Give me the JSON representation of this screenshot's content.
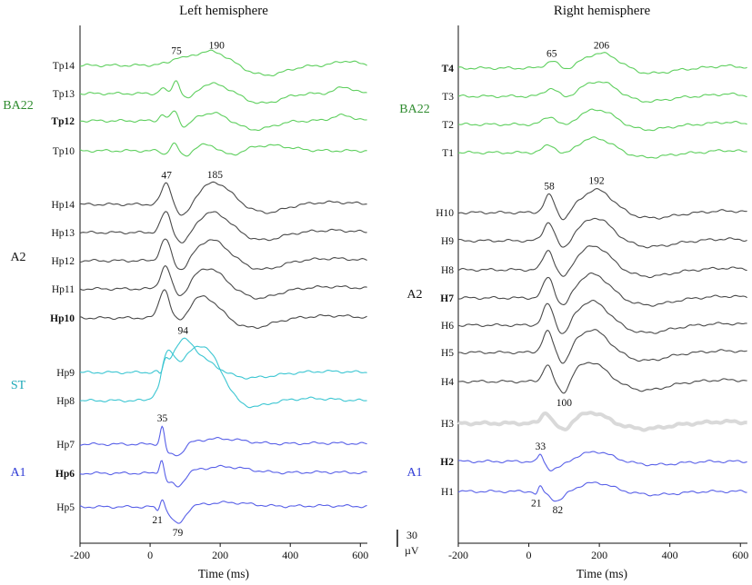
{
  "colors": {
    "green": "#5ecf5e",
    "dark": "#4a4a4a",
    "cyan": "#3cc6d2",
    "blue": "#5860e8",
    "gray_faded": "#d9d9d9",
    "group_green": "#2e8b2e",
    "group_cyan": "#1ea9b8",
    "group_blue": "#2f3bd6",
    "group_dark": "#111111"
  },
  "scale_bar": {
    "value": "30",
    "unit": "µV"
  },
  "chart_data": [
    {
      "type": "line",
      "title": "Left hemisphere",
      "xlabel": "Time (ms)",
      "xlim": [
        -200,
        620
      ],
      "xticks": [
        "-200",
        "0",
        "200",
        "400",
        "600"
      ],
      "groups": [
        {
          "name": "BA22",
          "color_key": "group_green",
          "channels": [
            "Tp14",
            "Tp13",
            "Tp12",
            "Tp10"
          ]
        },
        {
          "name": "A2",
          "color_key": "group_dark",
          "channels": [
            "Hp14",
            "Hp13",
            "Hp12",
            "Hp11",
            "Hp10"
          ]
        },
        {
          "name": "ST",
          "color_key": "group_cyan",
          "channels": [
            "Hp9",
            "Hp8"
          ]
        },
        {
          "name": "A1",
          "color_key": "group_blue",
          "channels": [
            "Hp7",
            "Hp6",
            "Hp5"
          ]
        }
      ],
      "series": [
        {
          "name": "Tp14",
          "bold": false,
          "color_key": "green",
          "comps": [
            [
              75,
              -6,
              12
            ],
            [
              150,
              -18,
              60
            ],
            [
              190,
              -10,
              40
            ],
            [
              330,
              18,
              55
            ],
            [
              560,
              -8,
              30
            ]
          ]
        },
        {
          "name": "Tp13",
          "bold": false,
          "color_key": "green",
          "comps": [
            [
              35,
              -10,
              8
            ],
            [
              75,
              -25,
              10
            ],
            [
              110,
              14,
              18
            ],
            [
              180,
              -18,
              45
            ],
            [
              320,
              18,
              50
            ],
            [
              555,
              -12,
              25
            ]
          ]
        },
        {
          "name": "Tp12",
          "bold": true,
          "color_key": "green",
          "comps": [
            [
              35,
              -12,
              8
            ],
            [
              70,
              -20,
              10
            ],
            [
              100,
              12,
              16
            ],
            [
              180,
              -15,
              40
            ],
            [
              300,
              16,
              50
            ],
            [
              550,
              -10,
              30
            ]
          ]
        },
        {
          "name": "Tp10",
          "bold": false,
          "color_key": "green",
          "comps": [
            [
              40,
              6,
              8
            ],
            [
              70,
              -14,
              10
            ],
            [
              100,
              10,
              16
            ],
            [
              165,
              -12,
              30
            ],
            [
              230,
              10,
              30
            ],
            [
              340,
              -10,
              60
            ]
          ]
        },
        {
          "name": "Hp14",
          "bold": false,
          "color_key": "dark",
          "comps": [
            [
              47,
              -40,
              14
            ],
            [
              95,
              26,
              20
            ],
            [
              185,
              -40,
              45
            ],
            [
              330,
              15,
              50
            ],
            [
              520,
              -4,
              60
            ]
          ]
        },
        {
          "name": "Hp13",
          "bold": false,
          "color_key": "dark",
          "comps": [
            [
              45,
              -38,
              14
            ],
            [
              95,
              24,
              20
            ],
            [
              180,
              -37,
              45
            ],
            [
              320,
              14,
              50
            ],
            [
              520,
              -4,
              60
            ]
          ]
        },
        {
          "name": "Hp12",
          "bold": false,
          "color_key": "dark",
          "comps": [
            [
              44,
              -40,
              14
            ],
            [
              92,
              22,
              20
            ],
            [
              175,
              -38,
              45
            ],
            [
              320,
              16,
              50
            ],
            [
              520,
              -4,
              60
            ]
          ]
        },
        {
          "name": "Hp11",
          "bold": false,
          "color_key": "dark",
          "comps": [
            [
              44,
              -42,
              14
            ],
            [
              90,
              20,
              20
            ],
            [
              165,
              -38,
              45
            ],
            [
              310,
              17,
              50
            ],
            [
              520,
              -4,
              60
            ]
          ]
        },
        {
          "name": "Hp10",
          "bold": true,
          "color_key": "dark",
          "comps": [
            [
              40,
              -52,
              14
            ],
            [
              90,
              18,
              20
            ],
            [
              150,
              -40,
              45
            ],
            [
              290,
              18,
              55
            ],
            [
              520,
              -4,
              60
            ]
          ]
        },
        {
          "name": "Hp9",
          "bold": false,
          "color_key": "cyan",
          "comps": [
            [
              30,
              8,
              5
            ],
            [
              45,
              -12,
              6
            ],
            [
              94,
              -50,
              30
            ],
            [
              150,
              -22,
              45
            ],
            [
              280,
              10,
              70
            ],
            [
              500,
              -2,
              60
            ]
          ]
        },
        {
          "name": "Hp8",
          "bold": false,
          "color_key": "cyan",
          "comps": [
            [
              25,
              10,
              6
            ],
            [
              50,
              -70,
              20
            ],
            [
              110,
              -55,
              40
            ],
            [
              170,
              -75,
              45
            ],
            [
              270,
              14,
              55
            ],
            [
              460,
              -4,
              60
            ]
          ]
        },
        {
          "name": "Hp7",
          "bold": false,
          "color_key": "blue",
          "comps": [
            [
              35,
              -34,
              6
            ],
            [
              52,
              12,
              8
            ],
            [
              79,
              22,
              18
            ],
            [
              200,
              -10,
              70
            ],
            [
              500,
              -2,
              80
            ]
          ]
        },
        {
          "name": "Hp6",
          "bold": true,
          "color_key": "blue",
          "comps": [
            [
              33,
              -26,
              6
            ],
            [
              50,
              10,
              8
            ],
            [
              79,
              26,
              18
            ],
            [
              210,
              -12,
              70
            ],
            [
              500,
              -2,
              80
            ]
          ]
        },
        {
          "name": "Hp5",
          "bold": false,
          "color_key": "blue",
          "comps": [
            [
              21,
              8,
              5
            ],
            [
              35,
              -18,
              6
            ],
            [
              79,
              32,
              20
            ],
            [
              220,
              -8,
              70
            ],
            [
              500,
              -2,
              80
            ]
          ]
        }
      ],
      "peak_labels": [
        {
          "text": "190",
          "t": 190,
          "channel": "Tp14"
        },
        {
          "text": "75",
          "t": 75,
          "channel": "Tp14"
        },
        {
          "text": "47",
          "t": 47,
          "channel": "Hp14"
        },
        {
          "text": "185",
          "t": 185,
          "channel": "Hp14"
        },
        {
          "text": "94",
          "t": 94,
          "channel": "Hp9"
        },
        {
          "text": "35",
          "t": 35,
          "channel": "Hp7"
        },
        {
          "text": "21",
          "t": 21,
          "channel": "Hp5"
        },
        {
          "text": "79",
          "t": 79,
          "channel": "Hp5"
        }
      ]
    },
    {
      "type": "line",
      "title": "Right hemisphere",
      "xlabel": "Time (ms)",
      "xlim": [
        -200,
        620
      ],
      "xticks": [
        "-200",
        "0",
        "200",
        "400",
        "600"
      ],
      "groups": [
        {
          "name": "BA22",
          "color_key": "group_green",
          "channels": [
            "T4",
            "T3",
            "T2",
            "T1"
          ]
        },
        {
          "name": "A2",
          "color_key": "group_dark",
          "channels": [
            "H10",
            "H9",
            "H8",
            "H7",
            "H6",
            "H5",
            "H4"
          ]
        },
        {
          "name": "",
          "color_key": "group_dark",
          "channels": [
            "H3"
          ]
        },
        {
          "name": "A1",
          "color_key": "group_blue",
          "channels": [
            "H2",
            "H1"
          ]
        }
      ],
      "series": [
        {
          "name": "T4",
          "bold": true,
          "color_key": "green",
          "comps": [
            [
              65,
              -12,
              18
            ],
            [
              110,
              5,
              18
            ],
            [
              206,
              -28,
              50
            ],
            [
              340,
              10,
              60
            ],
            [
              560,
              -4,
              40
            ]
          ]
        },
        {
          "name": "T3",
          "bold": false,
          "color_key": "green",
          "comps": [
            [
              62,
              -14,
              18
            ],
            [
              110,
              6,
              18
            ],
            [
              200,
              -28,
              50
            ],
            [
              330,
              10,
              60
            ],
            [
              560,
              -4,
              40
            ]
          ]
        },
        {
          "name": "T2",
          "bold": false,
          "color_key": "green",
          "comps": [
            [
              60,
              -14,
              18
            ],
            [
              105,
              7,
              18
            ],
            [
              195,
              -28,
              50
            ],
            [
              330,
              10,
              60
            ],
            [
              560,
              -4,
              40
            ]
          ]
        },
        {
          "name": "T1",
          "bold": false,
          "color_key": "green",
          "comps": [
            [
              58,
              -13,
              18
            ],
            [
              105,
              8,
              18
            ],
            [
              190,
              -27,
              50
            ],
            [
              330,
              9,
              60
            ],
            [
              560,
              -4,
              40
            ]
          ]
        },
        {
          "name": "H10",
          "bold": false,
          "color_key": "dark",
          "comps": [
            [
              58,
              -32,
              14
            ],
            [
              100,
              16,
              16
            ],
            [
              192,
              -42,
              45
            ],
            [
              350,
              10,
              60
            ],
            [
              560,
              -3,
              50
            ]
          ]
        },
        {
          "name": "H9",
          "bold": false,
          "color_key": "dark",
          "comps": [
            [
              56,
              -34,
              14
            ],
            [
              100,
              18,
              16
            ],
            [
              190,
              -42,
              45
            ],
            [
              345,
              11,
              60
            ],
            [
              560,
              -3,
              50
            ]
          ]
        },
        {
          "name": "H8",
          "bold": false,
          "color_key": "dark",
          "comps": [
            [
              55,
              -36,
              14
            ],
            [
              100,
              20,
              16
            ],
            [
              185,
              -44,
              45
            ],
            [
              340,
              12,
              60
            ],
            [
              560,
              -3,
              50
            ]
          ]
        },
        {
          "name": "H7",
          "bold": true,
          "color_key": "dark",
          "comps": [
            [
              55,
              -38,
              14
            ],
            [
              100,
              22,
              16
            ],
            [
              182,
              -44,
              45
            ],
            [
              340,
              13,
              60
            ],
            [
              560,
              -3,
              50
            ]
          ]
        },
        {
          "name": "H6",
          "bold": false,
          "color_key": "dark",
          "comps": [
            [
              54,
              -38,
              14
            ],
            [
              100,
              24,
              16
            ],
            [
              180,
              -44,
              45
            ],
            [
              335,
              14,
              60
            ],
            [
              560,
              -3,
              50
            ]
          ]
        },
        {
          "name": "H5",
          "bold": false,
          "color_key": "dark",
          "comps": [
            [
              53,
              -38,
              14
            ],
            [
              100,
              26,
              16
            ],
            [
              180,
              -42,
              45
            ],
            [
              330,
              15,
              60
            ],
            [
              560,
              -3,
              50
            ]
          ]
        },
        {
          "name": "H4",
          "bold": false,
          "color_key": "dark",
          "comps": [
            [
              52,
              -30,
              12
            ],
            [
              100,
              28,
              16
            ],
            [
              175,
              -36,
              45
            ],
            [
              330,
              16,
              60
            ],
            [
              560,
              -3,
              50
            ]
          ]
        },
        {
          "name": "H3",
          "bold": false,
          "color_key": "gray_faded",
          "comps": [
            [
              48,
              -20,
              12
            ],
            [
              100,
              14,
              16
            ],
            [
              180,
              -20,
              40
            ],
            [
              330,
              10,
              60
            ],
            [
              560,
              -3,
              50
            ]
          ]
        },
        {
          "name": "H2",
          "bold": true,
          "color_key": "blue",
          "comps": [
            [
              33,
              -14,
              6
            ],
            [
              60,
              8,
              10
            ],
            [
              82,
              12,
              20
            ],
            [
              190,
              -18,
              45
            ],
            [
              360,
              6,
              60
            ]
          ]
        },
        {
          "name": "H1",
          "bold": false,
          "color_key": "blue",
          "comps": [
            [
              21,
              6,
              5
            ],
            [
              33,
              -10,
              6
            ],
            [
              82,
              18,
              20
            ],
            [
              190,
              -16,
              45
            ],
            [
              360,
              6,
              60
            ]
          ]
        }
      ],
      "peak_labels": [
        {
          "text": "65",
          "t": 65,
          "channel": "T4"
        },
        {
          "text": "206",
          "t": 206,
          "channel": "T4"
        },
        {
          "text": "58",
          "t": 58,
          "channel": "H10"
        },
        {
          "text": "192",
          "t": 192,
          "channel": "H10"
        },
        {
          "text": "100",
          "t": 100,
          "channel": "H4"
        },
        {
          "text": "33",
          "t": 33,
          "channel": "H2"
        },
        {
          "text": "21",
          "t": 21,
          "channel": "H1"
        },
        {
          "text": "82",
          "t": 82,
          "channel": "H1"
        }
      ]
    }
  ]
}
